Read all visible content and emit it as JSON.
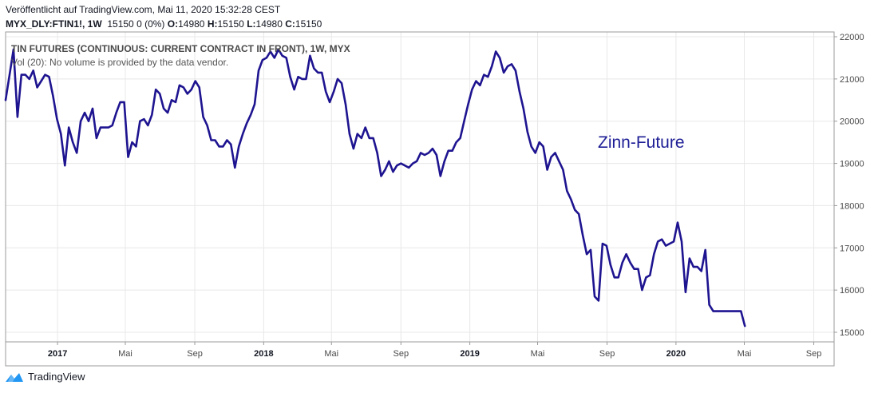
{
  "header": {
    "published": "Veröffentlicht auf TradingView.com, Mai 11, 2020 15:32:28 CEST",
    "symbol": "MYX_DLY:FTIN1!, 1W",
    "price_change": "15150 0 (0%)",
    "o_label": "O:",
    "o_value": "14980",
    "h_label": "H:",
    "h_value": "15150",
    "l_label": "L:",
    "l_value": "14980",
    "c_label": "C:",
    "c_value": "15150"
  },
  "legend": {
    "series_title": "TIN FUTURES (CONTINUOUS: CURRENT CONTRACT IN FRONT), 1W, MYX",
    "volume_note": "Vol (20): No volume is provided by the data vendor."
  },
  "annotation": "Zinn-Future",
  "footer": {
    "brand": "TradingView"
  },
  "colors": {
    "line": "#1e1490",
    "grid": "#e8e8e8",
    "accent": "#2196f3"
  },
  "chart_data": {
    "type": "line",
    "title": "",
    "xlabel": "",
    "ylabel": "",
    "ylim": [
      14800,
      22200
    ],
    "xlim": [
      "2016-10-01",
      "2020-10-07"
    ],
    "y_ticks": [
      15000,
      16000,
      17000,
      18000,
      19000,
      20000,
      21000,
      22000
    ],
    "x_ticks": [
      {
        "date": "2017-01-01",
        "label": "2017",
        "bold": true
      },
      {
        "date": "2017-05-01",
        "label": "Mai",
        "bold": false
      },
      {
        "date": "2017-09-01",
        "label": "Sep",
        "bold": false
      },
      {
        "date": "2018-01-01",
        "label": "2018",
        "bold": true
      },
      {
        "date": "2018-05-01",
        "label": "Mai",
        "bold": false
      },
      {
        "date": "2018-09-01",
        "label": "Sep",
        "bold": false
      },
      {
        "date": "2019-01-01",
        "label": "2019",
        "bold": true
      },
      {
        "date": "2019-05-01",
        "label": "Mai",
        "bold": false
      },
      {
        "date": "2019-09-01",
        "label": "Sep",
        "bold": false
      },
      {
        "date": "2020-01-01",
        "label": "2020",
        "bold": true
      },
      {
        "date": "2020-05-01",
        "label": "Mai",
        "bold": false
      },
      {
        "date": "2020-09-01",
        "label": "Sep",
        "bold": false
      }
    ],
    "grid": true,
    "series": [
      {
        "name": "",
        "points": [
          [
            "2016-10-01",
            20500
          ],
          [
            "2016-10-08",
            21100
          ],
          [
            "2016-10-15",
            21700
          ],
          [
            "2016-10-22",
            20100
          ],
          [
            "2016-10-29",
            21100
          ],
          [
            "2016-11-05",
            21100
          ],
          [
            "2016-11-12",
            21000
          ],
          [
            "2016-11-19",
            21200
          ],
          [
            "2016-11-26",
            20800
          ],
          [
            "2016-12-03",
            20950
          ],
          [
            "2016-12-10",
            21100
          ],
          [
            "2016-12-17",
            21050
          ],
          [
            "2016-12-24",
            20600
          ],
          [
            "2016-12-31",
            20050
          ],
          [
            "2017-01-07",
            19700
          ],
          [
            "2017-01-14",
            18950
          ],
          [
            "2017-01-21",
            19850
          ],
          [
            "2017-01-28",
            19500
          ],
          [
            "2017-02-04",
            19250
          ],
          [
            "2017-02-11",
            20000
          ],
          [
            "2017-02-18",
            20200
          ],
          [
            "2017-02-25",
            20000
          ],
          [
            "2017-03-04",
            20300
          ],
          [
            "2017-03-11",
            19600
          ],
          [
            "2017-03-18",
            19850
          ],
          [
            "2017-03-25",
            19850
          ],
          [
            "2017-04-01",
            19850
          ],
          [
            "2017-04-08",
            19900
          ],
          [
            "2017-04-15",
            20200
          ],
          [
            "2017-04-22",
            20450
          ],
          [
            "2017-04-29",
            20450
          ],
          [
            "2017-05-06",
            19150
          ],
          [
            "2017-05-13",
            19500
          ],
          [
            "2017-05-20",
            19400
          ],
          [
            "2017-05-27",
            20000
          ],
          [
            "2017-06-03",
            20050
          ],
          [
            "2017-06-10",
            19900
          ],
          [
            "2017-06-17",
            20150
          ],
          [
            "2017-06-24",
            20750
          ],
          [
            "2017-07-01",
            20650
          ],
          [
            "2017-07-08",
            20300
          ],
          [
            "2017-07-15",
            20200
          ],
          [
            "2017-07-22",
            20500
          ],
          [
            "2017-07-29",
            20450
          ],
          [
            "2017-08-05",
            20850
          ],
          [
            "2017-08-12",
            20800
          ],
          [
            "2017-08-19",
            20650
          ],
          [
            "2017-08-26",
            20750
          ],
          [
            "2017-09-02",
            20950
          ],
          [
            "2017-09-09",
            20800
          ],
          [
            "2017-09-16",
            20100
          ],
          [
            "2017-09-23",
            19900
          ],
          [
            "2017-09-30",
            19550
          ],
          [
            "2017-10-07",
            19550
          ],
          [
            "2017-10-14",
            19400
          ],
          [
            "2017-10-21",
            19400
          ],
          [
            "2017-10-28",
            19550
          ],
          [
            "2017-11-04",
            19450
          ],
          [
            "2017-11-11",
            18900
          ],
          [
            "2017-11-18",
            19400
          ],
          [
            "2017-11-25",
            19700
          ],
          [
            "2017-12-02",
            19950
          ],
          [
            "2017-12-09",
            20150
          ],
          [
            "2017-12-16",
            20400
          ],
          [
            "2017-12-23",
            21200
          ],
          [
            "2017-12-30",
            21450
          ],
          [
            "2018-01-06",
            21500
          ],
          [
            "2018-01-13",
            21650
          ],
          [
            "2018-01-20",
            21500
          ],
          [
            "2018-01-27",
            21700
          ],
          [
            "2018-02-03",
            21550
          ],
          [
            "2018-02-10",
            21500
          ],
          [
            "2018-02-17",
            21050
          ],
          [
            "2018-02-24",
            20750
          ],
          [
            "2018-03-03",
            21050
          ],
          [
            "2018-03-10",
            21000
          ],
          [
            "2018-03-17",
            21000
          ],
          [
            "2018-03-24",
            21550
          ],
          [
            "2018-03-31",
            21250
          ],
          [
            "2018-04-07",
            21150
          ],
          [
            "2018-04-14",
            21150
          ],
          [
            "2018-04-21",
            20700
          ],
          [
            "2018-04-28",
            20450
          ],
          [
            "2018-05-05",
            20700
          ],
          [
            "2018-05-12",
            21000
          ],
          [
            "2018-05-19",
            20900
          ],
          [
            "2018-05-26",
            20400
          ],
          [
            "2018-06-02",
            19700
          ],
          [
            "2018-06-09",
            19350
          ],
          [
            "2018-06-16",
            19700
          ],
          [
            "2018-06-23",
            19600
          ],
          [
            "2018-06-30",
            19850
          ],
          [
            "2018-07-07",
            19600
          ],
          [
            "2018-07-14",
            19600
          ],
          [
            "2018-07-21",
            19250
          ],
          [
            "2018-07-28",
            18700
          ],
          [
            "2018-08-04",
            18850
          ],
          [
            "2018-08-11",
            19050
          ],
          [
            "2018-08-18",
            18800
          ],
          [
            "2018-08-25",
            18950
          ],
          [
            "2018-09-01",
            19000
          ],
          [
            "2018-09-08",
            18950
          ],
          [
            "2018-09-15",
            18900
          ],
          [
            "2018-09-22",
            19000
          ],
          [
            "2018-09-29",
            19050
          ],
          [
            "2018-10-06",
            19250
          ],
          [
            "2018-10-13",
            19200
          ],
          [
            "2018-10-20",
            19250
          ],
          [
            "2018-10-27",
            19350
          ],
          [
            "2018-11-03",
            19200
          ],
          [
            "2018-11-10",
            18700
          ],
          [
            "2018-11-17",
            19050
          ],
          [
            "2018-11-24",
            19300
          ],
          [
            "2018-12-01",
            19300
          ],
          [
            "2018-12-08",
            19500
          ],
          [
            "2018-12-15",
            19600
          ],
          [
            "2018-12-22",
            20000
          ],
          [
            "2018-12-29",
            20400
          ],
          [
            "2019-01-05",
            20750
          ],
          [
            "2019-01-12",
            20950
          ],
          [
            "2019-01-19",
            20850
          ],
          [
            "2019-01-26",
            21100
          ],
          [
            "2019-02-02",
            21050
          ],
          [
            "2019-02-09",
            21300
          ],
          [
            "2019-02-16",
            21650
          ],
          [
            "2019-02-23",
            21500
          ],
          [
            "2019-03-02",
            21150
          ],
          [
            "2019-03-09",
            21300
          ],
          [
            "2019-03-16",
            21350
          ],
          [
            "2019-03-23",
            21200
          ],
          [
            "2019-03-30",
            20700
          ],
          [
            "2019-04-06",
            20300
          ],
          [
            "2019-04-13",
            19750
          ],
          [
            "2019-04-20",
            19400
          ],
          [
            "2019-04-27",
            19250
          ],
          [
            "2019-05-04",
            19500
          ],
          [
            "2019-05-11",
            19400
          ],
          [
            "2019-05-18",
            18850
          ],
          [
            "2019-05-25",
            19150
          ],
          [
            "2019-06-01",
            19250
          ],
          [
            "2019-06-08",
            19050
          ],
          [
            "2019-06-15",
            18850
          ],
          [
            "2019-06-22",
            18350
          ],
          [
            "2019-06-29",
            18150
          ],
          [
            "2019-07-06",
            17900
          ],
          [
            "2019-07-13",
            17800
          ],
          [
            "2019-07-20",
            17300
          ],
          [
            "2019-07-27",
            16850
          ],
          [
            "2019-08-03",
            16950
          ],
          [
            "2019-08-10",
            15850
          ],
          [
            "2019-08-17",
            15750
          ],
          [
            "2019-08-24",
            17100
          ],
          [
            "2019-08-31",
            17050
          ],
          [
            "2019-09-07",
            16600
          ],
          [
            "2019-09-14",
            16300
          ],
          [
            "2019-09-21",
            16300
          ],
          [
            "2019-09-28",
            16650
          ],
          [
            "2019-10-05",
            16850
          ],
          [
            "2019-10-12",
            16650
          ],
          [
            "2019-10-19",
            16500
          ],
          [
            "2019-10-26",
            16500
          ],
          [
            "2019-11-02",
            16000
          ],
          [
            "2019-11-09",
            16300
          ],
          [
            "2019-11-16",
            16350
          ],
          [
            "2019-11-23",
            16850
          ],
          [
            "2019-11-30",
            17150
          ],
          [
            "2019-12-07",
            17200
          ],
          [
            "2019-12-14",
            17050
          ],
          [
            "2019-12-21",
            17100
          ],
          [
            "2019-12-28",
            17150
          ],
          [
            "2020-01-04",
            17600
          ],
          [
            "2020-01-11",
            17150
          ],
          [
            "2020-01-18",
            15950
          ],
          [
            "2020-01-25",
            16750
          ],
          [
            "2020-02-01",
            16550
          ],
          [
            "2020-02-08",
            16550
          ],
          [
            "2020-02-15",
            16450
          ],
          [
            "2020-02-22",
            16950
          ],
          [
            "2020-02-29",
            15650
          ],
          [
            "2020-03-07",
            15500
          ],
          [
            "2020-03-14",
            15500
          ],
          [
            "2020-03-21",
            15500
          ],
          [
            "2020-03-28",
            15500
          ],
          [
            "2020-04-04",
            15500
          ],
          [
            "2020-04-11",
            15500
          ],
          [
            "2020-04-18",
            15500
          ],
          [
            "2020-04-25",
            15500
          ],
          [
            "2020-05-02",
            15150
          ]
        ]
      }
    ]
  }
}
